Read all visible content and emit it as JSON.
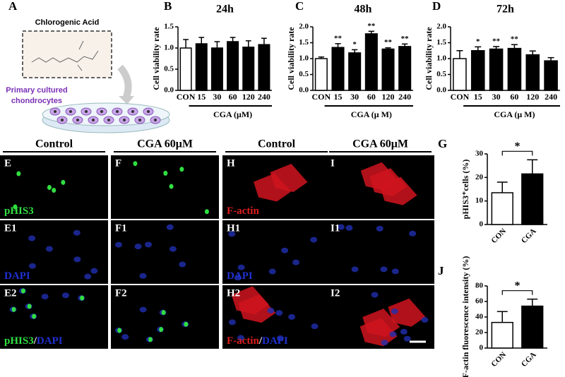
{
  "figure": {
    "panel_a": {
      "label": "A",
      "compound": "Chlorogenic Acid",
      "cells_line1": "Primary cultured",
      "cells_line2": "chondrocytes"
    },
    "columns": [
      "Control",
      "CGA 60μM",
      "Control",
      "CGA 60μM"
    ],
    "images": [
      [
        "E",
        "F",
        "H",
        "I"
      ],
      [
        "E1",
        "F1",
        "H1",
        "I1"
      ],
      [
        "E2",
        "F2",
        "H2",
        "I2"
      ]
    ],
    "stains": {
      "phis3": "pHIS3",
      "dapi": "DAPI",
      "factin": "F-actin",
      "sep": "/"
    }
  },
  "chart_data": [
    {
      "type": "bar",
      "label": "B",
      "title": "24h",
      "ylabel": "Cell viability rate",
      "xlabel": "CGA (μM)",
      "categories": [
        "CON",
        "15",
        "30",
        "60",
        "120",
        "240"
      ],
      "values": [
        1.0,
        1.1,
        1.0,
        1.15,
        1.02,
        1.08
      ],
      "errors": [
        0.2,
        0.15,
        0.15,
        0.1,
        0.15,
        0.15
      ],
      "colors": [
        "#ffffff",
        "#000000",
        "#000000",
        "#000000",
        "#000000",
        "#000000"
      ],
      "ylim": [
        0,
        1.5
      ],
      "yticks": [
        {
          "value": 0,
          "label": "0.0"
        },
        0.5,
        {
          "value": 1,
          "label": "1.0"
        },
        1.5
      ]
    },
    {
      "type": "bar",
      "label": "C",
      "title": "48h",
      "ylabel": "Cell viability rate",
      "xlabel": "CGA (μ M)",
      "categories": [
        "CON",
        "15",
        "30",
        "60",
        "120",
        "240"
      ],
      "values": [
        1.0,
        1.35,
        1.18,
        1.78,
        1.3,
        1.38
      ],
      "errors": [
        0.05,
        0.12,
        0.1,
        0.08,
        0.04,
        0.08
      ],
      "annotations": [
        null,
        "**",
        "*",
        "**",
        "**",
        "**"
      ],
      "colors": [
        "#ffffff",
        "#000000",
        "#000000",
        "#000000",
        "#000000",
        "#000000"
      ],
      "ylim": [
        0,
        2
      ],
      "yticks": [
        {
          "value": 0,
          "label": "0.0"
        },
        0.5,
        {
          "value": 1,
          "label": "1.0"
        },
        1.5,
        {
          "value": 2,
          "label": "2.0"
        }
      ]
    },
    {
      "type": "bar",
      "label": "D",
      "title": "72h",
      "ylabel": "Cell viability rate",
      "xlabel": "CGA (μ M)",
      "categories": [
        "CON",
        "15",
        "30",
        "60",
        "120",
        "240"
      ],
      "values": [
        1.0,
        1.25,
        1.3,
        1.32,
        1.12,
        0.93
      ],
      "errors": [
        0.25,
        0.12,
        0.08,
        0.12,
        0.12,
        0.1
      ],
      "annotations": [
        null,
        "*",
        "**",
        "**",
        null,
        null
      ],
      "colors": [
        "#ffffff",
        "#000000",
        "#000000",
        "#000000",
        "#000000",
        "#000000"
      ],
      "ylim": [
        0,
        2
      ],
      "yticks": [
        {
          "value": 0,
          "label": "0.0"
        },
        0.5,
        {
          "value": 1,
          "label": "1.0"
        },
        1.5,
        {
          "value": 2,
          "label": "2.0"
        }
      ]
    },
    {
      "type": "bar",
      "label": "G",
      "ylabel": "pHIS3⁺cells (%)",
      "significance": "*",
      "rotate_labels": true,
      "categories": [
        "CON",
        "CGA"
      ],
      "values": [
        13.5,
        21.5
      ],
      "errors": [
        4.5,
        6
      ],
      "colors": [
        "#ffffff",
        "#000000"
      ],
      "ylim": [
        0,
        30
      ],
      "yticks": [
        0,
        10,
        20,
        30
      ]
    },
    {
      "type": "bar",
      "label": "J",
      "ylabel": "F-actin fluorescence intensity (%)",
      "significance": "*",
      "rotate_labels": true,
      "categories": [
        "CON",
        "CGA"
      ],
      "values": [
        33,
        54
      ],
      "errors": [
        14,
        9
      ],
      "colors": [
        "#ffffff",
        "#000000"
      ],
      "ylim": [
        0,
        80
      ],
      "yticks": [
        0,
        20,
        40,
        60,
        80
      ]
    }
  ]
}
